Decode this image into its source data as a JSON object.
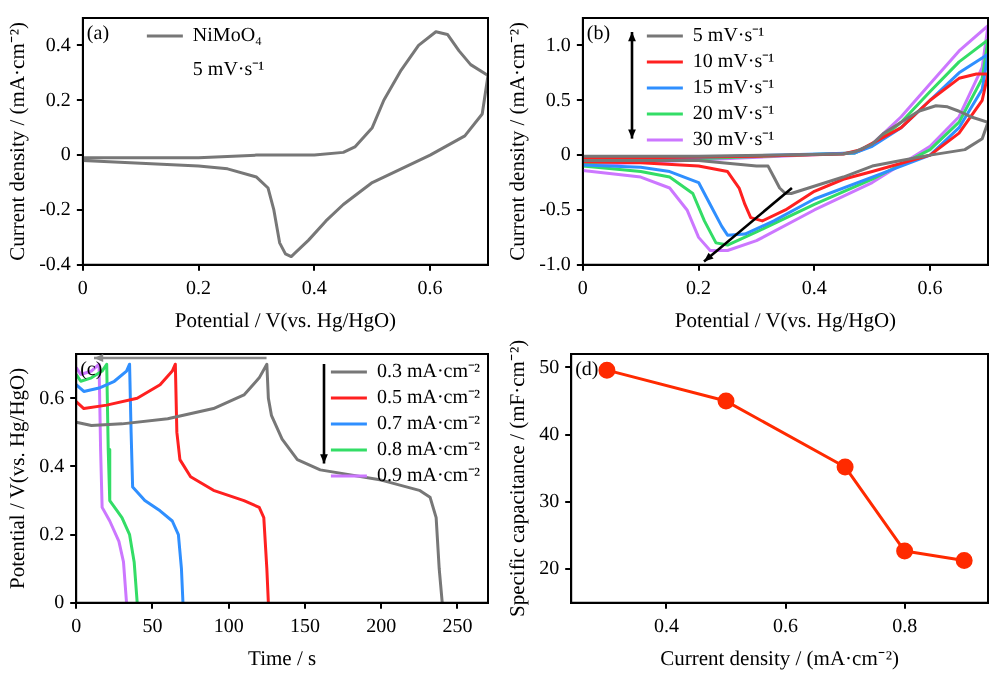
{
  "chart_data": [
    {
      "type": "line",
      "xlabel": "Potential / V(vs. Hg/HgO)",
      "ylabel": "Current density / (mA·cm⁻²)",
      "annotations": [
        "(a)",
        "5 mV·s⁻¹"
      ],
      "xlim": [
        0,
        0.7
      ],
      "ylim": [
        -0.4,
        0.5
      ],
      "xticks": [
        0,
        0.2,
        0.4,
        0.6
      ],
      "yticks": [
        -0.4,
        -0.2,
        0,
        0.2,
        0.4
      ],
      "legend": "top left",
      "marker": "none",
      "series": [
        {
          "name": "NiMoO₄",
          "color": "#777777",
          "x": [
            0,
            0.1,
            0.2,
            0.3,
            0.4,
            0.45,
            0.47,
            0.5,
            0.52,
            0.55,
            0.58,
            0.61,
            0.63,
            0.65,
            0.67,
            0.7,
            0.69,
            0.66,
            0.6,
            0.55,
            0.5,
            0.45,
            0.42,
            0.39,
            0.36,
            0.35,
            0.34,
            0.33,
            0.32,
            0.3,
            0.25,
            0.2,
            0.1,
            0
          ],
          "values": [
            -0.01,
            -0.01,
            -0.01,
            0,
            0,
            0.01,
            0.03,
            0.1,
            0.2,
            0.31,
            0.4,
            0.45,
            0.44,
            0.38,
            0.33,
            0.29,
            0.15,
            0.07,
            0,
            -0.05,
            -0.1,
            -0.18,
            -0.24,
            -0.31,
            -0.37,
            -0.36,
            -0.32,
            -0.2,
            -0.12,
            -0.08,
            -0.05,
            -0.04,
            -0.03,
            -0.02
          ]
        }
      ]
    },
    {
      "type": "line",
      "xlabel": "Potential / V(vs. Hg/HgO)",
      "ylabel": "Current density / (mA·cm⁻²)",
      "annotations": [
        "(b)"
      ],
      "xlim": [
        0,
        0.7
      ],
      "ylim": [
        -1,
        1.25
      ],
      "xticks": [
        0,
        0.2,
        0.4,
        0.6
      ],
      "yticks": [
        {
          "value": -1,
          "label": "-1.0"
        },
        -0.5,
        0,
        0.5,
        {
          "value": 1,
          "label": "1.0"
        }
      ],
      "legend": "top left",
      "marker": "none",
      "series": [
        {
          "name": "5 mV·s⁻¹",
          "color": "#777777",
          "x": [
            0,
            0.2,
            0.45,
            0.47,
            0.5,
            0.52,
            0.55,
            0.58,
            0.61,
            0.63,
            0.65,
            0.67,
            0.7,
            0.69,
            0.66,
            0.6,
            0.55,
            0.5,
            0.45,
            0.42,
            0.39,
            0.36,
            0.35,
            0.34,
            0.33,
            0.32,
            0.3,
            0.2,
            0
          ],
          "values": [
            -0.01,
            -0.01,
            0.01,
            0.03,
            0.1,
            0.2,
            0.3,
            0.4,
            0.45,
            0.44,
            0.4,
            0.35,
            0.3,
            0.15,
            0.05,
            0,
            -0.05,
            -0.1,
            -0.2,
            -0.25,
            -0.3,
            -0.35,
            -0.35,
            -0.3,
            -0.2,
            -0.1,
            -0.1,
            -0.05,
            -0.05
          ]
        },
        {
          "name": "10 mV·s⁻¹",
          "color": "#ff2020",
          "x": [
            0,
            0.3,
            0.45,
            0.48,
            0.55,
            0.6,
            0.65,
            0.68,
            0.7,
            0.69,
            0.65,
            0.6,
            0.5,
            0.45,
            0.4,
            0.35,
            0.31,
            0.29,
            0.28,
            0.27,
            0.25,
            0.2,
            0.1,
            0
          ],
          "values": [
            -0.03,
            -0.01,
            0.01,
            0.05,
            0.25,
            0.5,
            0.7,
            0.74,
            0.74,
            0.5,
            0.2,
            0,
            -0.15,
            -0.22,
            -0.33,
            -0.5,
            -0.6,
            -0.57,
            -0.45,
            -0.3,
            -0.15,
            -0.1,
            -0.07,
            -0.06
          ]
        },
        {
          "name": "15 mV·s⁻¹",
          "color": "#2f8fff",
          "x": [
            0,
            0.47,
            0.5,
            0.55,
            0.6,
            0.65,
            0.7,
            0.69,
            0.65,
            0.6,
            0.5,
            0.4,
            0.33,
            0.28,
            0.25,
            0.24,
            0.22,
            0.2,
            0.15,
            0.1,
            0
          ],
          "values": [
            -0.05,
            0.02,
            0.08,
            0.25,
            0.5,
            0.75,
            0.92,
            0.6,
            0.25,
            0,
            -0.2,
            -0.4,
            -0.6,
            -0.72,
            -0.73,
            -0.65,
            -0.45,
            -0.25,
            -0.15,
            -0.11,
            -0.09
          ]
        },
        {
          "name": "20 mV·s⁻¹",
          "color": "#33dd66",
          "x": [
            0,
            0.47,
            0.5,
            0.55,
            0.6,
            0.65,
            0.7,
            0.69,
            0.65,
            0.6,
            0.5,
            0.4,
            0.3,
            0.25,
            0.23,
            0.21,
            0.19,
            0.15,
            0.1,
            0
          ],
          "values": [
            -0.07,
            0.02,
            0.09,
            0.3,
            0.58,
            0.85,
            1.05,
            0.7,
            0.3,
            0.05,
            -0.22,
            -0.45,
            -0.7,
            -0.82,
            -0.8,
            -0.6,
            -0.35,
            -0.2,
            -0.15,
            -0.1
          ]
        },
        {
          "name": "30 mV·s⁻¹",
          "color": "#cc77ff",
          "x": [
            0,
            0.47,
            0.5,
            0.55,
            0.6,
            0.65,
            0.7,
            0.69,
            0.65,
            0.6,
            0.5,
            0.4,
            0.3,
            0.25,
            0.22,
            0.2,
            0.18,
            0.15,
            0.1,
            0
          ],
          "values": [
            -0.09,
            0.02,
            0.1,
            0.35,
            0.65,
            0.95,
            1.18,
            0.8,
            0.35,
            0.08,
            -0.25,
            -0.5,
            -0.78,
            -0.87,
            -0.87,
            -0.75,
            -0.5,
            -0.3,
            -0.2,
            -0.14
          ]
        }
      ]
    },
    {
      "type": "line",
      "xlabel": "Time / s",
      "ylabel": "Potential / V(vs. Hg/HgO)",
      "annotations": [
        "(c)"
      ],
      "xlim": [
        0,
        270
      ],
      "ylim": [
        0,
        0.73
      ],
      "xticks": [
        0,
        50,
        100,
        150,
        200,
        250
      ],
      "yticks": [
        0,
        0.2,
        0.4,
        0.6
      ],
      "legend": "top right",
      "marker": "none",
      "series": [
        {
          "name": "0.3 mA·cm⁻²",
          "color": "#777777",
          "x": [
            0,
            10,
            30,
            60,
            90,
            110,
            120,
            125,
            126,
            128,
            135,
            145,
            160,
            200,
            225,
            232,
            236,
            238,
            240
          ],
          "values": [
            0.53,
            0.52,
            0.525,
            0.54,
            0.57,
            0.61,
            0.66,
            0.7,
            0.6,
            0.55,
            0.48,
            0.42,
            0.39,
            0.36,
            0.33,
            0.31,
            0.25,
            0.1,
            0
          ]
        },
        {
          "name": "0.5 mA·cm⁻²",
          "color": "#ff2020",
          "x": [
            0,
            5,
            20,
            40,
            55,
            63,
            65,
            66,
            68,
            75,
            90,
            110,
            120,
            123,
            125,
            126
          ],
          "values": [
            0.59,
            0.57,
            0.58,
            0.6,
            0.64,
            0.68,
            0.7,
            0.5,
            0.42,
            0.37,
            0.33,
            0.3,
            0.28,
            0.25,
            0.1,
            0
          ]
        },
        {
          "name": "0.7 mA·cm⁻²",
          "color": "#2f8fff",
          "x": [
            0,
            5,
            15,
            25,
            33,
            35,
            36,
            37,
            45,
            55,
            63,
            67,
            69,
            70
          ],
          "values": [
            0.64,
            0.62,
            0.63,
            0.65,
            0.68,
            0.7,
            0.5,
            0.34,
            0.3,
            0.27,
            0.24,
            0.2,
            0.1,
            0
          ]
        },
        {
          "name": "0.8 mA·cm⁻²",
          "color": "#33dd66",
          "x": [
            0,
            3,
            10,
            17,
            20,
            21,
            22,
            30,
            35,
            38,
            40
          ],
          "values": [
            0.67,
            0.65,
            0.66,
            0.68,
            0.7,
            0.45,
            0.3,
            0.25,
            0.2,
            0.12,
            0
          ]
        },
        {
          "name": "0.9 mA·cm⁻²",
          "color": "#cc77ff",
          "x": [
            0,
            3,
            10,
            15,
            16,
            17,
            22,
            28,
            31,
            33
          ],
          "values": [
            0.69,
            0.67,
            0.68,
            0.7,
            0.45,
            0.28,
            0.24,
            0.18,
            0.12,
            0
          ]
        }
      ]
    },
    {
      "type": "line",
      "xlabel": "Current density / (mA·cm⁻²)",
      "ylabel": "Specific capacitance / (mF·cm⁻²)",
      "annotations": [
        "(d)"
      ],
      "xlim": [
        0.24,
        0.94
      ],
      "ylim": [
        15,
        52
      ],
      "xticks": [
        0.4,
        0.6,
        0.8
      ],
      "yticks": [
        20,
        30,
        40,
        50
      ],
      "marker": "circle",
      "series": [
        {
          "color": "#ff2a00",
          "x": [
            0.3,
            0.5,
            0.7,
            0.8,
            0.9
          ],
          "values": [
            49.6,
            45,
            35.2,
            22.7,
            21.3
          ]
        }
      ]
    }
  ]
}
